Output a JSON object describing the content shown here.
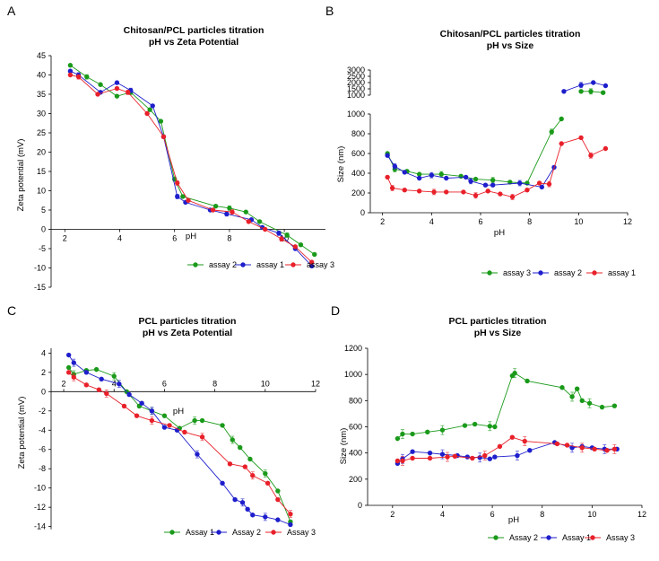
{
  "panels": [
    {
      "label": "A",
      "title": [
        "Chitosan/PCL particles titration",
        "pH vs Zeta Potential"
      ],
      "xlabel": "pH",
      "ylabel": "Zeta potential (mV)",
      "xticks": [
        "2",
        "4",
        "6",
        "8",
        "10"
      ],
      "yticks": [
        "45",
        "40",
        "35",
        "30",
        "25",
        "20",
        "15",
        "10",
        "5",
        "0",
        "-5",
        "-10",
        "-15"
      ],
      "legend": [
        "assay 2",
        "assay 1",
        "assay 3"
      ]
    },
    {
      "label": "B",
      "title": [
        "Chitosan/PCL particles titration",
        "pH vs Size"
      ],
      "xlabel": "pH",
      "ylabel": "Size (nm)",
      "xticks": [
        "2",
        "4",
        "6",
        "8",
        "10",
        "12"
      ],
      "yticks_lower": [
        "1000",
        "800",
        "600",
        "400",
        "200",
        "0"
      ],
      "yticks_upper": [
        "3000",
        "2500",
        "2000",
        "1500",
        "1000"
      ],
      "legend": [
        "assay 3",
        "assay 2",
        "assay 1"
      ]
    },
    {
      "label": "C",
      "title": [
        "PCL particles titration",
        "pH vs Zeta Potential"
      ],
      "xlabel": "pH",
      "ylabel": "Zeta potential (mV)",
      "xticks": [
        "2",
        "4",
        "6",
        "8",
        "10",
        "12"
      ],
      "yticks": [
        "4",
        "2",
        "0",
        "-2",
        "-4",
        "-6",
        "-8",
        "-10",
        "-12",
        "-14"
      ],
      "legend": [
        "Assay 1",
        "Assay 2",
        "Assay 3"
      ]
    },
    {
      "label": "D",
      "title": [
        "PCL particles titration",
        "pH vs Size"
      ],
      "xlabel": "pH",
      "ylabel": "Size (nm)",
      "xticks": [
        "2",
        "4",
        "6",
        "8",
        "10",
        "12"
      ],
      "yticks": [
        "1200",
        "1000",
        "800",
        "600",
        "400",
        "200",
        "0"
      ],
      "legend": [
        "Assay 2",
        "Assay 1",
        "Assay 3"
      ]
    }
  ],
  "colors": {
    "green": "#1a9a1a",
    "blue": "#1e1ecc",
    "red": "#e8202a"
  },
  "chart_data": [
    {
      "panel": "A",
      "type": "line",
      "title": "Chitosan/PCL particles titration pH vs Zeta Potential",
      "xlabel": "pH",
      "ylabel": "Zeta potential (mV)",
      "xlim": [
        1.5,
        11.5
      ],
      "ylim": [
        -15,
        45
      ],
      "legend_position": "bottom",
      "series": [
        {
          "name": "assay 2",
          "color": "#1a9a1a",
          "x": [
            2.2,
            2.8,
            3.3,
            3.9,
            4.4,
            5.1,
            5.5,
            6.0,
            6.3,
            7.5,
            8.0,
            8.6,
            9.1,
            10.1,
            10.6,
            11.1
          ],
          "y": [
            42.5,
            39.5,
            37.5,
            34.5,
            35.5,
            31.0,
            28.0,
            13.0,
            8.5,
            6.0,
            5.5,
            4.5,
            2.0,
            -1.5,
            -4.0,
            -6.5
          ]
        },
        {
          "name": "assay 1",
          "color": "#1e1ecc",
          "x": [
            2.2,
            2.5,
            3.3,
            3.9,
            4.4,
            5.2,
            5.6,
            6.1,
            6.4,
            7.3,
            7.9,
            8.8,
            9.2,
            9.8,
            10.4,
            11.0
          ],
          "y": [
            41.0,
            40.0,
            35.5,
            38.0,
            36.0,
            32.0,
            24.0,
            8.5,
            7.0,
            5.0,
            4.0,
            2.5,
            0.5,
            -1.0,
            -5.0,
            -9.5
          ]
        },
        {
          "name": "assay 3",
          "color": "#e8202a",
          "x": [
            2.2,
            2.5,
            3.2,
            3.9,
            4.3,
            5.0,
            5.6,
            6.1,
            6.5,
            7.4,
            8.1,
            8.7,
            9.3,
            9.9,
            10.4,
            11.0
          ],
          "y": [
            40.0,
            39.5,
            35.0,
            36.5,
            35.5,
            30.0,
            24.0,
            12.0,
            7.5,
            5.0,
            4.5,
            2.0,
            0.0,
            -2.5,
            -4.5,
            -8.5
          ]
        }
      ]
    },
    {
      "panel": "B",
      "type": "line",
      "title": "Chitosan/PCL particles titration pH vs Size",
      "xlabel": "pH",
      "ylabel": "Size (nm)",
      "xlim": [
        1.5,
        12
      ],
      "ylim": [
        0,
        3000
      ],
      "axis_break": [
        1000,
        1000
      ],
      "legend_position": "bottom",
      "series": [
        {
          "name": "assay 3",
          "color": "#1a9a1a",
          "x": [
            2.2,
            2.5,
            3.0,
            3.5,
            4.4,
            5.2,
            5.8,
            6.5,
            7.2,
            7.9,
            8.9,
            9.3,
            10.1,
            10.5,
            11.0
          ],
          "y": [
            600,
            440,
            420,
            390,
            390,
            370,
            340,
            330,
            310,
            300,
            820,
            950,
            1300,
            1300,
            1200
          ]
        },
        {
          "name": "assay 2",
          "color": "#1e1ecc",
          "x": [
            2.2,
            2.5,
            2.9,
            3.5,
            4.0,
            4.6,
            5.4,
            5.6,
            6.2,
            6.5,
            7.6,
            8.5,
            9.0,
            9.4,
            10.1,
            10.6,
            11.1
          ],
          "y": [
            580,
            470,
            410,
            350,
            380,
            350,
            360,
            320,
            280,
            280,
            300,
            260,
            460,
            1300,
            1800,
            2000,
            1750
          ]
        },
        {
          "name": "assay 1",
          "color": "#e8202a",
          "x": [
            2.2,
            2.4,
            2.9,
            3.5,
            4.1,
            4.6,
            5.3,
            5.8,
            6.3,
            6.8,
            7.3,
            7.9,
            8.4,
            8.8,
            9.3,
            10.1,
            10.5,
            11.1
          ],
          "y": [
            360,
            250,
            230,
            220,
            210,
            210,
            210,
            175,
            220,
            190,
            160,
            230,
            300,
            290,
            700,
            760,
            580,
            650
          ]
        }
      ]
    },
    {
      "panel": "C",
      "type": "line",
      "title": "PCL particles titration pH vs Zeta Potential",
      "xlabel": "pH",
      "ylabel": "Zeta potential (mV)",
      "xlim": [
        1.5,
        12
      ],
      "ylim": [
        -14.5,
        4.5
      ],
      "legend_position": "bottom",
      "series": [
        {
          "name": "Assay 1",
          "color": "#1a9a1a",
          "x": [
            2.2,
            2.4,
            2.9,
            3.3,
            4.0,
            4.5,
            5.0,
            5.5,
            6.0,
            6.6,
            7.2,
            7.5,
            8.3,
            8.7,
            9.0,
            9.4,
            10.0,
            10.5,
            11.0
          ],
          "y": [
            2.5,
            1.8,
            2.2,
            2.3,
            1.6,
            0.0,
            -1.5,
            -2.0,
            -2.5,
            -3.8,
            -3.0,
            -3.0,
            -3.5,
            -5.0,
            -5.8,
            -7.0,
            -8.5,
            -10.3,
            -13.5
          ]
        },
        {
          "name": "Assay 2",
          "color": "#1e1ecc",
          "x": [
            2.2,
            2.4,
            2.9,
            3.5,
            4.2,
            4.6,
            5.1,
            5.5,
            6.0,
            6.5,
            7.3,
            8.3,
            8.8,
            9.1,
            9.3,
            9.5,
            10.0,
            10.5,
            11.0
          ],
          "y": [
            3.8,
            3.0,
            2.0,
            1.3,
            0.8,
            -0.3,
            -1.2,
            -2.0,
            -3.7,
            -4.0,
            -6.5,
            -9.5,
            -11.2,
            -11.5,
            -12.2,
            -12.8,
            -13.0,
            -13.3,
            -13.8
          ]
        },
        {
          "name": "Assay 3",
          "color": "#e8202a",
          "x": [
            2.2,
            2.4,
            2.9,
            3.4,
            3.7,
            4.4,
            4.9,
            5.5,
            6.2,
            6.8,
            7.5,
            8.6,
            9.2,
            9.5,
            10.1,
            10.5,
            11.0
          ],
          "y": [
            2.0,
            1.5,
            0.7,
            0.2,
            -0.2,
            -1.5,
            -2.5,
            -3.0,
            -3.5,
            -4.2,
            -4.7,
            -7.5,
            -7.8,
            -8.7,
            -9.5,
            -11.2,
            -12.7
          ]
        }
      ]
    },
    {
      "panel": "D",
      "type": "line",
      "title": "PCL particles titration pH vs Size",
      "xlabel": "pH",
      "ylabel": "Size (nm)",
      "xlim": [
        1,
        12
      ],
      "ylim": [
        0,
        1200
      ],
      "legend_position": "bottom",
      "series": [
        {
          "name": "Assay 2",
          "color": "#1a9a1a",
          "x": [
            2.2,
            2.4,
            2.8,
            3.4,
            4.0,
            4.9,
            5.3,
            5.9,
            6.1,
            6.8,
            6.9,
            7.4,
            8.8,
            9.2,
            9.4,
            9.6,
            9.9,
            10.4,
            10.9
          ],
          "y": [
            510,
            545,
            545,
            560,
            575,
            610,
            620,
            605,
            600,
            990,
            1010,
            950,
            900,
            830,
            890,
            800,
            780,
            750,
            760
          ]
        },
        {
          "name": "Assay 1",
          "color": "#1e1ecc",
          "x": [
            2.2,
            2.4,
            2.8,
            3.5,
            4.0,
            4.6,
            5.0,
            5.5,
            5.9,
            6.1,
            7.0,
            7.5,
            8.5,
            9.2,
            9.6,
            10.0,
            10.5,
            11.0
          ],
          "y": [
            320,
            355,
            410,
            400,
            390,
            380,
            370,
            365,
            355,
            370,
            380,
            420,
            480,
            440,
            450,
            440,
            430,
            430
          ]
        },
        {
          "name": "Assay 3",
          "color": "#e8202a",
          "x": [
            2.2,
            2.4,
            2.8,
            3.5,
            4.2,
            4.5,
            5.2,
            5.7,
            6.3,
            6.8,
            7.3,
            8.6,
            9.0,
            9.6,
            10.1,
            10.6,
            10.9
          ],
          "y": [
            340,
            340,
            360,
            360,
            370,
            375,
            360,
            380,
            450,
            520,
            490,
            470,
            460,
            440,
            430,
            420,
            430
          ]
        }
      ]
    }
  ]
}
